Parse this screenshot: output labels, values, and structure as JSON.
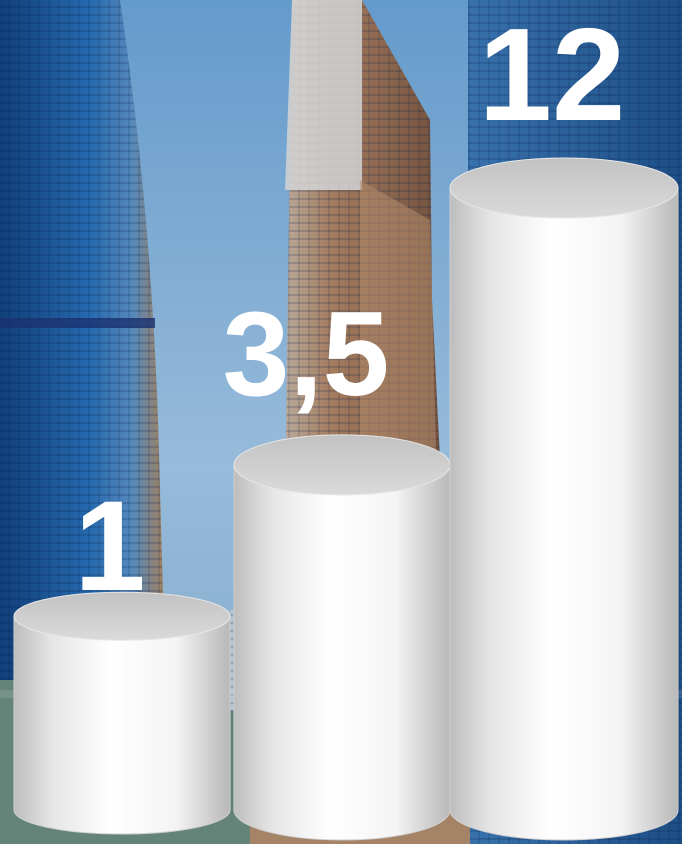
{
  "chart_data": {
    "type": "bar",
    "style": "3d-cylinder",
    "categories": [
      "",
      "",
      ""
    ],
    "values": [
      1,
      3.5,
      12
    ],
    "labels": [
      "1",
      "3,5",
      "12"
    ],
    "ylim": [
      0,
      12
    ],
    "grid": false,
    "legend": "none",
    "title": "",
    "xlabel": "",
    "ylabel": ""
  },
  "colors": {
    "bar_face": "#f2f2f2",
    "bar_top": "#cfcfcf",
    "label": "#ffffff",
    "sky": "#8fb9dc",
    "tower_blue": "#1f5fa3",
    "tower_copper": "#b07a4e"
  }
}
